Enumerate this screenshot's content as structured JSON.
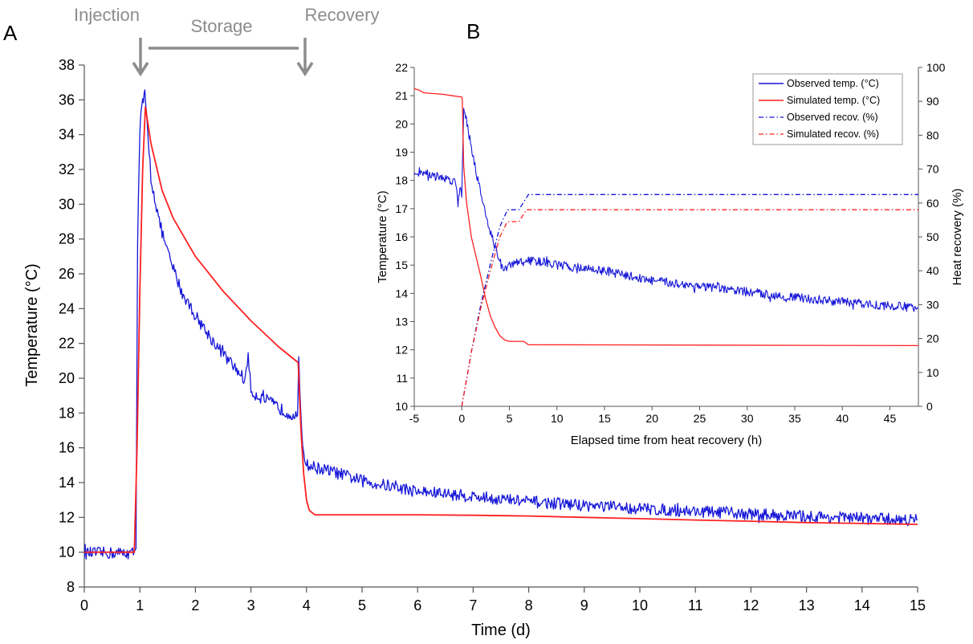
{
  "panel_labels": {
    "a": "A",
    "b": "B"
  },
  "annotations": {
    "injection": "Injection",
    "storage": "Storage",
    "recovery": "Recovery"
  },
  "colors": {
    "observed": "#1515d8",
    "simulated": "#ff2020",
    "arrow": "#8c8c8c"
  },
  "chart_data": [
    {
      "type": "line",
      "panel": "A",
      "xlabel": "Time (d)",
      "ylabel": "Temperature (°C)",
      "xlim": [
        0,
        15
      ],
      "ylim": [
        8,
        38
      ],
      "xticks": [
        0,
        1,
        2,
        3,
        4,
        5,
        6,
        7,
        8,
        9,
        10,
        11,
        12,
        13,
        14,
        15
      ],
      "yticks": [
        8,
        10,
        12,
        14,
        16,
        18,
        20,
        22,
        24,
        26,
        28,
        30,
        32,
        34,
        36,
        38
      ],
      "grid": false,
      "series": [
        {
          "key": "observed",
          "noise": 0.35,
          "points": [
            [
              0,
              9.95
            ],
            [
              0.9,
              9.95
            ],
            [
              0.93,
              10.5
            ],
            [
              0.96,
              28
            ],
            [
              1.0,
              34.5
            ],
            [
              1.05,
              35.8
            ],
            [
              1.09,
              36.3
            ],
            [
              1.12,
              35.0
            ],
            [
              1.2,
              31.5
            ],
            [
              1.35,
              29.0
            ],
            [
              1.5,
              27.2
            ],
            [
              1.75,
              25.0
            ],
            [
              2.0,
              23.6
            ],
            [
              2.3,
              22.2
            ],
            [
              2.6,
              21.0
            ],
            [
              2.9,
              19.9
            ],
            [
              2.95,
              21.5
            ],
            [
              3.0,
              19.2
            ],
            [
              3.3,
              18.7
            ],
            [
              3.6,
              18.1
            ],
            [
              3.84,
              17.8
            ],
            [
              3.86,
              20.9
            ],
            [
              3.88,
              19.0
            ],
            [
              3.93,
              16.2
            ],
            [
              4.0,
              15.0
            ],
            [
              4.5,
              14.6
            ],
            [
              5.0,
              14.1
            ],
            [
              6.0,
              13.5
            ],
            [
              7.0,
              13.2
            ],
            [
              8.0,
              12.9
            ],
            [
              9.0,
              12.7
            ],
            [
              10.0,
              12.5
            ],
            [
              11.0,
              12.35
            ],
            [
              12.0,
              12.2
            ],
            [
              13.0,
              12.05
            ],
            [
              14.0,
              11.95
            ],
            [
              15.0,
              11.85
            ]
          ]
        },
        {
          "key": "simulated",
          "noise": 0,
          "points": [
            [
              0,
              10.0
            ],
            [
              0.9,
              10.0
            ],
            [
              0.95,
              16.0
            ],
            [
              1.0,
              25.0
            ],
            [
              1.05,
              32.0
            ],
            [
              1.1,
              35.6
            ],
            [
              1.2,
              33.5
            ],
            [
              1.4,
              30.8
            ],
            [
              1.6,
              29.2
            ],
            [
              2.0,
              27.0
            ],
            [
              2.5,
              25.0
            ],
            [
              3.0,
              23.3
            ],
            [
              3.5,
              21.8
            ],
            [
              3.85,
              20.9
            ],
            [
              3.9,
              17.0
            ],
            [
              3.95,
              14.5
            ],
            [
              4.0,
              13.0
            ],
            [
              4.05,
              12.4
            ],
            [
              4.15,
              12.15
            ],
            [
              5.0,
              12.15
            ],
            [
              6.0,
              12.15
            ],
            [
              7.0,
              12.12
            ],
            [
              8.0,
              12.08
            ],
            [
              9.0,
              12.0
            ],
            [
              10.0,
              11.93
            ],
            [
              11.0,
              11.85
            ],
            [
              12.0,
              11.78
            ],
            [
              13.0,
              11.7
            ],
            [
              14.0,
              11.65
            ],
            [
              15.0,
              11.6
            ]
          ]
        }
      ]
    },
    {
      "type": "line",
      "panel": "B",
      "xlabel": "Elapsed time from heat recovery (h)",
      "ylabel": "Temperature (°C)",
      "y2label": "Heat recovery (%)",
      "xlim": [
        -5,
        48
      ],
      "ylim": [
        10,
        22
      ],
      "y2lim": [
        0,
        100
      ],
      "xticks": [
        -5,
        0,
        5,
        10,
        15,
        20,
        25,
        30,
        35,
        40,
        45
      ],
      "yticks": [
        10,
        11,
        12,
        13,
        14,
        15,
        16,
        17,
        18,
        19,
        20,
        21,
        22
      ],
      "y2ticks": [
        0,
        10,
        20,
        30,
        40,
        50,
        60,
        70,
        80,
        90,
        100
      ],
      "grid": false,
      "legend_position": "top-right",
      "series": [
        {
          "name": "Observed temp. (°C)",
          "key": "observed",
          "axis": "left",
          "style": "solid",
          "noise": 0.16,
          "points": [
            [
              -5,
              18.3
            ],
            [
              -4,
              18.3
            ],
            [
              -3,
              18.15
            ],
            [
              -2,
              18.1
            ],
            [
              -1,
              18.0
            ],
            [
              -0.6,
              17.9
            ],
            [
              -0.4,
              17.2
            ],
            [
              -0.2,
              17.8
            ],
            [
              0,
              17.5
            ],
            [
              0.2,
              20.6
            ],
            [
              0.4,
              20.3
            ],
            [
              1.0,
              19.2
            ],
            [
              2.0,
              17.5
            ],
            [
              3.0,
              16.2
            ],
            [
              4.0,
              15.1
            ],
            [
              4.5,
              14.8
            ],
            [
              5.0,
              15.0
            ],
            [
              6.0,
              15.1
            ],
            [
              7.0,
              15.15
            ],
            [
              8.0,
              15.15
            ],
            [
              10.0,
              15.0
            ],
            [
              15.0,
              14.8
            ],
            [
              20.0,
              14.45
            ],
            [
              25.0,
              14.25
            ],
            [
              30.0,
              14.05
            ],
            [
              35.0,
              13.85
            ],
            [
              40.0,
              13.7
            ],
            [
              45.0,
              13.55
            ],
            [
              48.0,
              13.5
            ]
          ]
        },
        {
          "name": "Simulated temp. (°C)",
          "key": "simulated",
          "axis": "left",
          "style": "solid",
          "noise": 0,
          "points": [
            [
              -5,
              21.25
            ],
            [
              -4.5,
              21.2
            ],
            [
              -4,
              21.1
            ],
            [
              -2,
              21.05
            ],
            [
              -1,
              21.0
            ],
            [
              0,
              20.95
            ],
            [
              0.05,
              20.9
            ],
            [
              0.2,
              18.5
            ],
            [
              0.5,
              17.2
            ],
            [
              1.0,
              16.0
            ],
            [
              1.5,
              15.3
            ],
            [
              2.0,
              14.6
            ],
            [
              2.5,
              13.8
            ],
            [
              3.0,
              13.2
            ],
            [
              3.5,
              12.8
            ],
            [
              4.0,
              12.5
            ],
            [
              4.5,
              12.35
            ],
            [
              5.0,
              12.3
            ],
            [
              6.5,
              12.3
            ],
            [
              7.0,
              12.18
            ],
            [
              48.0,
              12.15
            ]
          ]
        },
        {
          "name": "Observed recov. (%)",
          "key": "observed",
          "axis": "right",
          "style": "dashdot",
          "noise": 0,
          "points": [
            [
              0,
              0
            ],
            [
              0.5,
              8
            ],
            [
              1.0,
              16
            ],
            [
              2.0,
              30
            ],
            [
              3.0,
              42
            ],
            [
              4.0,
              53
            ],
            [
              4.8,
              58
            ],
            [
              6.0,
              58
            ],
            [
              7.0,
              62.5
            ],
            [
              48.0,
              62.5
            ]
          ]
        },
        {
          "name": "Simulated recov. (%)",
          "key": "simulated",
          "axis": "right",
          "style": "dashdot",
          "noise": 0,
          "points": [
            [
              0,
              0
            ],
            [
              0.5,
              8
            ],
            [
              1.0,
              16
            ],
            [
              2.0,
              29
            ],
            [
              3.0,
              40
            ],
            [
              4.0,
              50
            ],
            [
              4.8,
              54.5
            ],
            [
              6.0,
              54.5
            ],
            [
              6.8,
              58
            ],
            [
              48.0,
              58
            ]
          ]
        }
      ]
    }
  ]
}
